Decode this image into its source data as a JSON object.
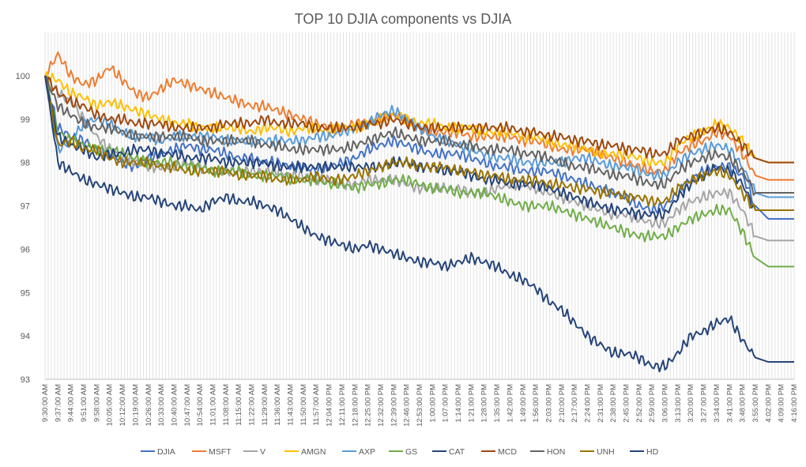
{
  "chart_data": {
    "type": "line",
    "title": "TOP 10 DJIA components vs DJIA",
    "xlabel": "",
    "ylabel": "",
    "ylim": [
      93,
      101
    ],
    "yticks": [
      93,
      94,
      95,
      96,
      97,
      98,
      99,
      100
    ],
    "grid": "vertical",
    "legend_position": "bottom",
    "x_ticks": [
      "9:30:00 AM",
      "9:37:00 AM",
      "9:44:00 AM",
      "9:51:00 AM",
      "9:58:00 AM",
      "10:05:00 AM",
      "10:12:00 AM",
      "10:19:00 AM",
      "10:26:00 AM",
      "10:33:00 AM",
      "10:40:00 AM",
      "10:47:00 AM",
      "10:54:00 AM",
      "11:01:00 AM",
      "11:08:00 AM",
      "11:15:00 AM",
      "11:22:00 AM",
      "11:29:00 AM",
      "11:36:00 AM",
      "11:43:00 AM",
      "11:50:00 AM",
      "11:57:00 AM",
      "12:04:00 PM",
      "12:11:00 PM",
      "12:18:00 PM",
      "12:25:00 PM",
      "12:32:00 PM",
      "12:39:00 PM",
      "12:46:00 PM",
      "12:53:00 PM",
      "1:00:00 PM",
      "1:07:00 PM",
      "1:14:00 PM",
      "1:21:00 PM",
      "1:28:00 PM",
      "1:35:00 PM",
      "1:42:00 PM",
      "1:49:00 PM",
      "1:56:00 PM",
      "2:03:00 PM",
      "2:10:00 PM",
      "2:17:00 PM",
      "2:24:00 PM",
      "2:31:00 PM",
      "2:38:00 PM",
      "2:45:00 PM",
      "2:52:00 PM",
      "2:59:00 PM",
      "3:06:00 PM",
      "3:13:00 PM",
      "3:20:00 PM",
      "3:27:00 PM",
      "3:34:00 PM",
      "3:41:00 PM",
      "3:48:00 PM",
      "3:55:00 PM",
      "4:02:00 PM",
      "4:09:00 PM",
      "4:16:00 PM"
    ],
    "series": [
      {
        "name": "DJIA",
        "color": "#4472C4",
        "values": [
          100,
          98.8,
          98.6,
          98.5,
          98.3,
          98.2,
          98.0,
          97.9,
          98.1,
          98.2,
          98.3,
          98.4,
          98.3,
          98.3,
          98.2,
          98.1,
          98.1,
          98.0,
          98.0,
          97.9,
          97.9,
          97.8,
          97.9,
          98.0,
          98.1,
          98.3,
          98.4,
          98.5,
          98.4,
          98.3,
          98.2,
          98.2,
          98.2,
          98.1,
          98.0,
          97.9,
          97.9,
          97.8,
          97.8,
          97.8,
          97.7,
          97.6,
          97.5,
          97.4,
          97.3,
          97.2,
          97.0,
          96.9,
          97.0,
          97.3,
          97.6,
          97.8,
          97.9,
          97.9,
          97.7,
          97.0,
          96.7,
          96.7,
          96.7
        ]
      },
      {
        "name": "MSFT",
        "color": "#ED7D31",
        "values": [
          100,
          100.5,
          100.0,
          99.8,
          99.9,
          100.2,
          99.9,
          99.6,
          99.5,
          99.7,
          99.9,
          99.8,
          99.7,
          99.6,
          99.5,
          99.4,
          99.3,
          99.3,
          99.2,
          99.1,
          99.0,
          98.9,
          98.8,
          98.8,
          98.9,
          98.9,
          99.0,
          99.1,
          99.0,
          98.8,
          98.7,
          98.7,
          98.7,
          98.6,
          98.6,
          98.6,
          98.6,
          98.5,
          98.5,
          98.4,
          98.3,
          98.3,
          98.3,
          98.2,
          98.1,
          98.0,
          97.9,
          97.8,
          97.8,
          98.2,
          98.4,
          98.5,
          98.7,
          98.6,
          98.2,
          97.7,
          97.6,
          97.6,
          97.6
        ]
      },
      {
        "name": "V",
        "color": "#A5A5A5",
        "values": [
          100,
          99.6,
          99.4,
          99.0,
          98.6,
          98.3,
          98.1,
          98.0,
          97.9,
          97.9,
          97.9,
          98.0,
          97.9,
          97.8,
          97.8,
          97.8,
          97.8,
          97.8,
          97.8,
          97.7,
          97.7,
          97.6,
          97.6,
          97.5,
          97.5,
          97.6,
          97.6,
          97.6,
          97.5,
          97.4,
          97.4,
          97.4,
          97.4,
          97.3,
          97.3,
          97.4,
          97.5,
          97.5,
          97.4,
          97.3,
          97.2,
          97.1,
          97.0,
          96.9,
          96.8,
          96.8,
          96.7,
          96.6,
          96.6,
          96.9,
          97.1,
          97.2,
          97.3,
          97.3,
          96.9,
          96.3,
          96.2,
          96.2,
          96.2
        ]
      },
      {
        "name": "AMGN",
        "color": "#FFC000",
        "values": [
          100,
          99.9,
          99.6,
          99.5,
          99.3,
          99.4,
          99.3,
          99.2,
          99.1,
          99.0,
          98.9,
          98.9,
          98.8,
          98.8,
          98.8,
          98.8,
          98.7,
          98.8,
          98.8,
          98.7,
          98.8,
          98.8,
          98.7,
          98.8,
          98.8,
          98.9,
          99.0,
          99.1,
          99.0,
          98.9,
          98.9,
          98.8,
          98.8,
          98.8,
          98.7,
          98.7,
          98.7,
          98.6,
          98.6,
          98.5,
          98.4,
          98.4,
          98.3,
          98.2,
          98.2,
          98.2,
          98.1,
          98.0,
          98.0,
          98.4,
          98.6,
          98.7,
          98.9,
          98.8,
          98.5,
          98.1,
          98.0,
          98.0,
          98.0
        ]
      },
      {
        "name": "AXP",
        "color": "#5B9BD5",
        "values": [
          100,
          98.3,
          98.5,
          98.9,
          99.0,
          98.9,
          98.7,
          98.6,
          98.6,
          98.5,
          98.6,
          98.6,
          98.6,
          98.6,
          98.5,
          98.5,
          98.5,
          98.5,
          98.5,
          98.5,
          98.5,
          98.6,
          98.6,
          98.7,
          98.8,
          98.9,
          99.1,
          99.2,
          99.0,
          98.8,
          98.6,
          98.5,
          98.4,
          98.3,
          98.2,
          98.1,
          98.1,
          98.0,
          98.0,
          98.0,
          98.0,
          98.1,
          98.1,
          98.0,
          97.9,
          97.9,
          97.8,
          97.7,
          97.7,
          98.0,
          98.2,
          98.3,
          98.4,
          98.3,
          97.9,
          97.3,
          97.2,
          97.2,
          97.2
        ]
      },
      {
        "name": "GS",
        "color": "#70AD47",
        "values": [
          100,
          98.7,
          98.5,
          98.4,
          98.3,
          98.3,
          98.2,
          98.1,
          98.0,
          98.0,
          98.0,
          97.9,
          97.9,
          97.8,
          97.8,
          97.8,
          97.7,
          97.7,
          97.7,
          97.6,
          97.6,
          97.6,
          97.5,
          97.5,
          97.4,
          97.5,
          97.5,
          97.6,
          97.6,
          97.5,
          97.4,
          97.4,
          97.3,
          97.3,
          97.3,
          97.2,
          97.1,
          97.0,
          97.0,
          97.0,
          96.9,
          96.8,
          96.7,
          96.6,
          96.5,
          96.4,
          96.3,
          96.3,
          96.3,
          96.5,
          96.7,
          96.8,
          96.9,
          96.9,
          96.4,
          95.8,
          95.6,
          95.6,
          95.6
        ]
      },
      {
        "name": "CAT",
        "color": "#264478",
        "values": [
          100,
          98.6,
          98.4,
          98.3,
          98.1,
          98.2,
          98.2,
          98.3,
          98.3,
          98.2,
          98.2,
          98.1,
          98.1,
          98.1,
          98.0,
          98.0,
          98.0,
          98.0,
          97.9,
          97.9,
          97.9,
          97.9,
          97.9,
          97.9,
          97.9,
          97.9,
          97.9,
          98.0,
          98.0,
          97.9,
          97.9,
          97.8,
          97.8,
          97.7,
          97.6,
          97.6,
          97.5,
          97.5,
          97.5,
          97.4,
          97.3,
          97.2,
          97.1,
          97.0,
          96.9,
          96.9,
          96.8,
          96.8,
          96.8,
          97.2,
          97.5,
          97.7,
          97.9,
          97.8,
          97.5,
          96.9,
          96.9,
          96.9,
          96.9
        ]
      },
      {
        "name": "MCD",
        "color": "#9E480E",
        "values": [
          100,
          99.6,
          99.4,
          99.3,
          99.1,
          99.0,
          99.0,
          98.9,
          98.9,
          98.9,
          98.8,
          98.8,
          98.8,
          98.8,
          98.9,
          98.9,
          98.9,
          99.0,
          98.9,
          98.9,
          98.9,
          98.8,
          98.8,
          98.8,
          98.8,
          98.9,
          98.9,
          99.0,
          98.9,
          98.8,
          98.8,
          98.8,
          98.8,
          98.8,
          98.8,
          98.8,
          98.8,
          98.7,
          98.7,
          98.6,
          98.6,
          98.5,
          98.5,
          98.4,
          98.4,
          98.3,
          98.3,
          98.2,
          98.2,
          98.5,
          98.6,
          98.7,
          98.8,
          98.7,
          98.4,
          98.1,
          98.0,
          98.0,
          98.0
        ]
      },
      {
        "name": "HON",
        "color": "#636363",
        "values": [
          100,
          99.3,
          99.1,
          98.9,
          98.8,
          98.8,
          98.7,
          98.6,
          98.6,
          98.6,
          98.6,
          98.6,
          98.5,
          98.5,
          98.5,
          98.5,
          98.5,
          98.4,
          98.4,
          98.3,
          98.3,
          98.3,
          98.3,
          98.3,
          98.4,
          98.5,
          98.6,
          98.7,
          98.6,
          98.5,
          98.5,
          98.5,
          98.4,
          98.4,
          98.3,
          98.3,
          98.3,
          98.2,
          98.2,
          98.1,
          98.0,
          97.9,
          97.9,
          97.8,
          97.7,
          97.7,
          97.6,
          97.5,
          97.5,
          97.8,
          98.0,
          98.1,
          98.2,
          98.1,
          97.8,
          97.3,
          97.3,
          97.3,
          97.3
        ]
      },
      {
        "name": "UNH",
        "color": "#997300",
        "values": [
          100,
          98.4,
          98.5,
          98.3,
          98.3,
          98.1,
          98.0,
          98.0,
          98.0,
          97.9,
          97.9,
          97.8,
          97.8,
          97.8,
          97.8,
          97.7,
          97.7,
          97.7,
          97.6,
          97.6,
          97.6,
          97.7,
          97.6,
          97.6,
          97.7,
          97.8,
          97.9,
          98.0,
          98.0,
          97.9,
          97.9,
          97.9,
          97.8,
          97.8,
          97.7,
          97.7,
          97.6,
          97.6,
          97.6,
          97.5,
          97.5,
          97.4,
          97.4,
          97.3,
          97.3,
          97.2,
          97.2,
          97.1,
          97.1,
          97.4,
          97.6,
          97.7,
          97.8,
          97.7,
          97.3,
          96.9,
          96.9,
          96.9,
          96.9
        ]
      },
      {
        "name": "HD",
        "color": "#264478",
        "values": [
          100,
          98.0,
          97.8,
          97.6,
          97.5,
          97.4,
          97.3,
          97.2,
          97.2,
          97.1,
          97.0,
          97.0,
          96.9,
          97.1,
          97.2,
          97.1,
          97.1,
          97.0,
          96.9,
          96.7,
          96.5,
          96.3,
          96.2,
          96.1,
          96.0,
          96.1,
          96.0,
          95.9,
          95.8,
          95.7,
          95.7,
          95.6,
          95.7,
          95.8,
          95.7,
          95.6,
          95.4,
          95.3,
          95.1,
          94.8,
          94.6,
          94.3,
          94.0,
          93.8,
          93.6,
          93.6,
          93.5,
          93.3,
          93.3,
          93.6,
          94.0,
          94.1,
          94.3,
          94.4,
          93.9,
          93.5,
          93.4,
          93.4,
          93.4
        ]
      }
    ]
  }
}
